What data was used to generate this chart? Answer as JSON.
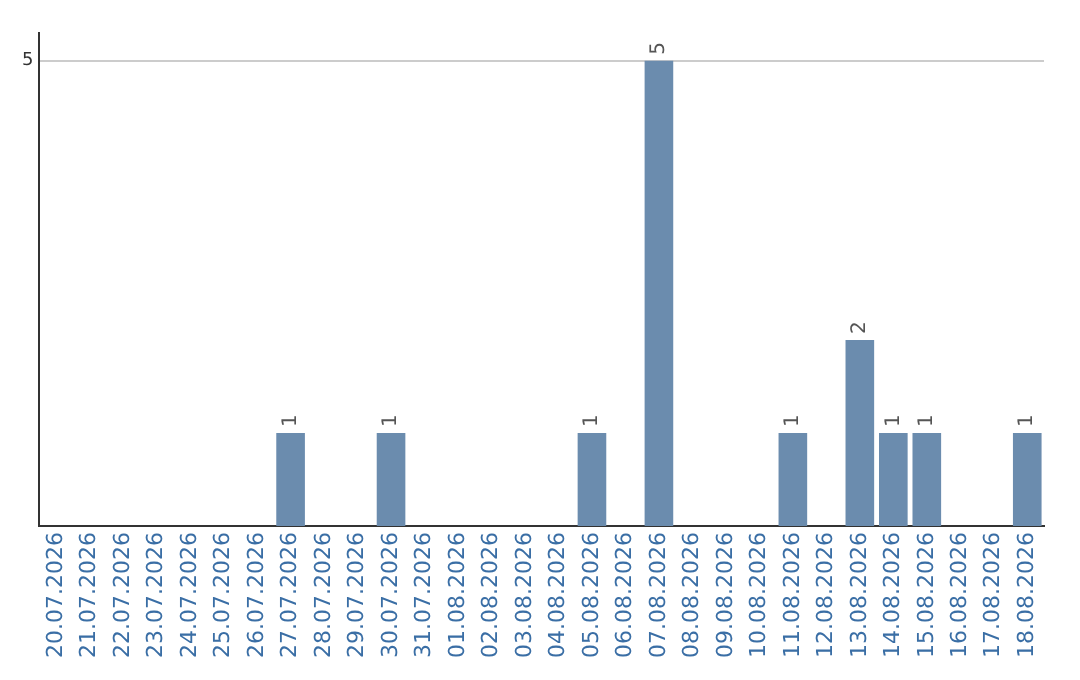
{
  "chart_data": {
    "type": "bar",
    "categories": [
      "20.07.2026",
      "21.07.2026",
      "22.07.2026",
      "23.07.2026",
      "24.07.2026",
      "25.07.2026",
      "26.07.2026",
      "27.07.2026",
      "28.07.2026",
      "29.07.2026",
      "30.07.2026",
      "31.07.2026",
      "01.08.2026",
      "02.08.2026",
      "03.08.2026",
      "04.08.2026",
      "05.08.2026",
      "06.08.2026",
      "07.08.2026",
      "08.08.2026",
      "09.08.2026",
      "10.08.2026",
      "11.08.2026",
      "12.08.2026",
      "13.08.2026",
      "14.08.2026",
      "15.08.2026",
      "16.08.2026",
      "17.08.2026",
      "18.08.2026"
    ],
    "values": [
      0,
      0,
      0,
      0,
      0,
      0,
      0,
      1,
      0,
      0,
      1,
      0,
      0,
      0,
      0,
      0,
      1,
      0,
      5,
      0,
      0,
      0,
      1,
      0,
      2,
      1,
      1,
      0,
      0,
      1
    ],
    "value_labels": [
      null,
      null,
      null,
      null,
      null,
      null,
      null,
      "1",
      null,
      null,
      "1",
      null,
      null,
      null,
      null,
      null,
      "1",
      null,
      "5",
      null,
      null,
      null,
      "1",
      null,
      "2",
      "1",
      "1",
      null,
      null,
      "1"
    ],
    "color": "#6b8cae",
    "ylim": [
      0,
      5.3
    ],
    "yticks": [
      5
    ],
    "grid": "y",
    "legend": false
  }
}
